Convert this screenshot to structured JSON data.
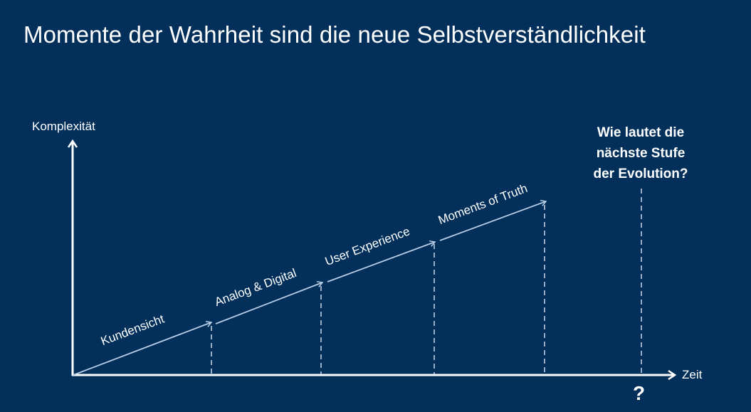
{
  "title": "Momente der Wahrheit sind die neue Selbstverständlichkeit",
  "y_axis_label": "Komplexität",
  "x_axis_label": "Zeit",
  "stages": [
    "Kundensicht",
    "Analog & Digital",
    "User Experience",
    "Moments of Truth"
  ],
  "question": "Wie lautet die nächste Stufe der Evolution?",
  "question_lines": [
    "Wie lautet die",
    "nächste Stufe",
    "der Evolution?"
  ],
  "question_mark": "?",
  "colors": {
    "background": "#02305a",
    "axis": "#ffffff",
    "arrow": "#b8cde6",
    "dash": "#c9d8ea"
  }
}
